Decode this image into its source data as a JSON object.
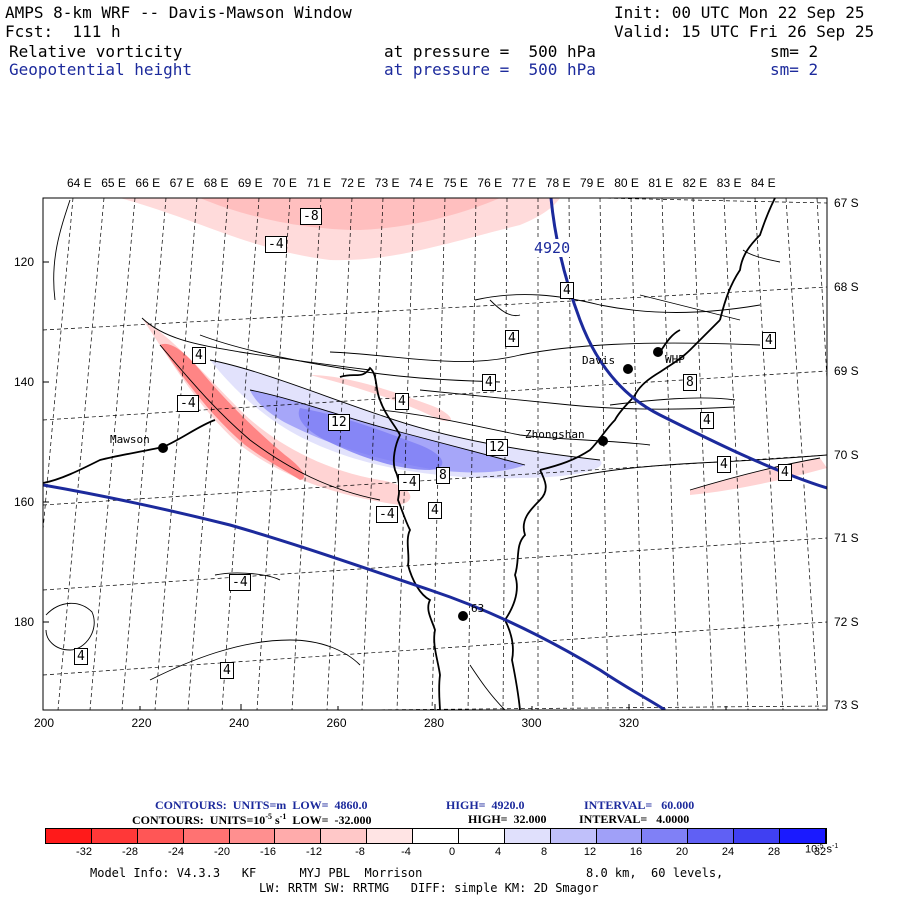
{
  "header": {
    "title": "AMPS 8-km WRF -- Davis-Mawson Window",
    "init": "Init: 00 UTC Mon 22 Sep 25",
    "forecast": "Fcst:  111 h",
    "valid": "Valid: 15 UTC Fri 26 Sep 25",
    "field1": {
      "name": "Relative vorticity",
      "pressure": "at pressure =  500 hPa",
      "smooth": "sm= 2"
    },
    "field2": {
      "name": "Geopotential height",
      "pressure": "at pressure =  500 hPa",
      "smooth": "sm= 2"
    }
  },
  "map": {
    "lon_labels": [
      "64 E",
      "65 E",
      "66 E",
      "67 E",
      "68 E",
      "69 E",
      "70 E",
      "71 E",
      "72 E",
      "73 E",
      "74 E",
      "75 E",
      "76 E",
      "77 E",
      "78 E",
      "79 E",
      "80 E",
      "81 E",
      "82 E",
      "83 E",
      "84 E"
    ],
    "lat_labels": [
      "67 S",
      "68 S",
      "69 S",
      "70 S",
      "71 S",
      "72 S",
      "73 S"
    ],
    "x_ticks": [
      "200",
      "220",
      "240",
      "260",
      "280",
      "300",
      "320"
    ],
    "y_ticks": [
      "120",
      "140",
      "160",
      "180"
    ],
    "stations": [
      "Mawson",
      "Davis",
      "WHP",
      "Zhongshan",
      "63"
    ],
    "height_contour_label": "4920",
    "vorticity_labels": [
      "-8",
      "-4",
      "4",
      "4",
      "4",
      "4",
      "4",
      "-4",
      "4",
      "12",
      "8",
      "12",
      "8",
      "-4",
      "-4",
      "4",
      "4",
      "4",
      "4",
      "-4",
      "4",
      "4"
    ],
    "colors": {
      "height_contour": "#1c2a9c",
      "negative": "#e85a5a",
      "positive": "#4a4ae6",
      "coast": "#000000"
    }
  },
  "footer": {
    "contours1": {
      "label": "CONTOURS:  UNITS=m",
      "low": "LOW=  4860.0",
      "high": "HIGH=  4920.0",
      "interval": "INTERVAL=   60.000"
    },
    "contours2": {
      "label": "CONTOURS:  UNITS=10",
      "exp": "-5",
      "unit_s": " s",
      "sexp": "-1",
      "low": "  LOW=  -32.000",
      "high": "HIGH=  32.000",
      "interval": "INTERVAL=   4.0000"
    },
    "colorbar_ticks": [
      "-32",
      "-28",
      "-24",
      "-20",
      "-16",
      "-12",
      "-8",
      "-4",
      "0",
      "4",
      "8",
      "12",
      "16",
      "20",
      "24",
      "28",
      "32"
    ],
    "colorbar_unit": "10",
    "colorbar_unit_exp": "-5",
    "colorbar_unit_s": " s",
    "colorbar_unit_sexp": "-1",
    "colorbar_colors": [
      "#ff1a1a",
      "#ff3838",
      "#ff5656",
      "#ff7272",
      "#ff8f8f",
      "#ffabab",
      "#ffc8c8",
      "#ffe4e4",
      "#ffffff",
      "#ffffff",
      "#e0e0fc",
      "#c0c0fa",
      "#a0a0f8",
      "#8080f6",
      "#6060f4",
      "#4040f2",
      "#1a1aff"
    ],
    "model_info": "Model Info: V4.3.3   KF      MYJ PBL  Morrison",
    "model_info_right": "8.0 km,  60 levels,",
    "model_info2": "LW: RRTM SW: RRTMG   DIFF: simple KM: 2D Smagor"
  }
}
